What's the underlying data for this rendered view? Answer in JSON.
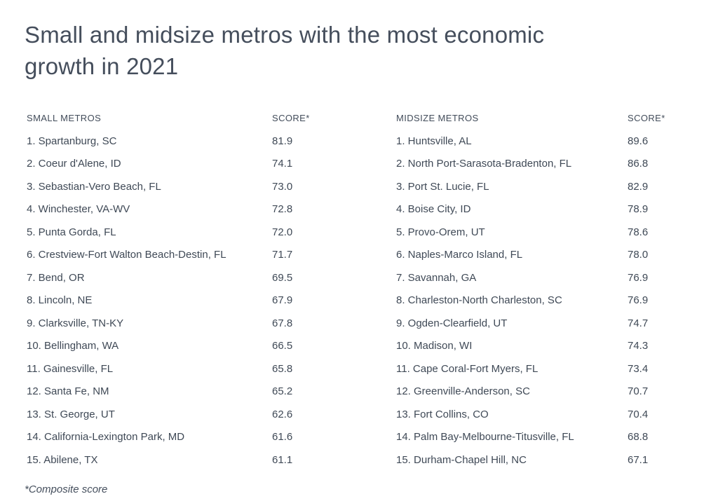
{
  "title": {
    "line1": "Small and midsize metros with the most economic",
    "line2": "growth in 2021",
    "full": "Small and midsize metros with the most economic growth in 2021"
  },
  "footnote": "*Composite score",
  "colors": {
    "background": "#ffffff",
    "title_text": "#454e5c",
    "header_text": "#424c5a",
    "body_text": "#3f4956"
  },
  "chart_data": {
    "type": "table",
    "title": "Small and midsize metros with the most economic growth in 2021",
    "footnote": "*Composite score",
    "tables": [
      {
        "name_header": "SMALL METROS",
        "score_header": "SCORE*",
        "rows": [
          {
            "rank": 1,
            "metro": "Spartanburg, SC",
            "score": "81.9"
          },
          {
            "rank": 2,
            "metro": "Coeur d'Alene, ID",
            "score": "74.1"
          },
          {
            "rank": 3,
            "metro": "Sebastian-Vero Beach, FL",
            "score": "73.0"
          },
          {
            "rank": 4,
            "metro": "Winchester, VA-WV",
            "score": "72.8"
          },
          {
            "rank": 5,
            "metro": "Punta Gorda, FL",
            "score": "72.0"
          },
          {
            "rank": 6,
            "metro": "Crestview-Fort Walton Beach-Destin, FL",
            "score": "71.7"
          },
          {
            "rank": 7,
            "metro": "Bend, OR",
            "score": "69.5"
          },
          {
            "rank": 8,
            "metro": "Lincoln, NE",
            "score": "67.9"
          },
          {
            "rank": 9,
            "metro": "Clarksville, TN-KY",
            "score": "67.8"
          },
          {
            "rank": 10,
            "metro": "Bellingham, WA",
            "score": "66.5"
          },
          {
            "rank": 11,
            "metro": "Gainesville, FL",
            "score": "65.8"
          },
          {
            "rank": 12,
            "metro": "Santa Fe, NM",
            "score": "65.2"
          },
          {
            "rank": 13,
            "metro": "St. George, UT",
            "score": "62.6"
          },
          {
            "rank": 14,
            "metro": "California-Lexington Park, MD",
            "score": "61.6"
          },
          {
            "rank": 15,
            "metro": "Abilene, TX",
            "score": "61.1"
          }
        ]
      },
      {
        "name_header": "MIDSIZE METROS",
        "score_header": "SCORE*",
        "rows": [
          {
            "rank": 1,
            "metro": "Huntsville, AL",
            "score": "89.6"
          },
          {
            "rank": 2,
            "metro": "North Port-Sarasota-Bradenton, FL",
            "score": "86.8"
          },
          {
            "rank": 3,
            "metro": "Port St. Lucie, FL",
            "score": "82.9"
          },
          {
            "rank": 4,
            "metro": "Boise City, ID",
            "score": "78.9"
          },
          {
            "rank": 5,
            "metro": "Provo-Orem, UT",
            "score": "78.6"
          },
          {
            "rank": 6,
            "metro": "Naples-Marco Island, FL",
            "score": "78.0"
          },
          {
            "rank": 7,
            "metro": "Savannah, GA",
            "score": "76.9"
          },
          {
            "rank": 8,
            "metro": "Charleston-North Charleston, SC",
            "score": "76.9"
          },
          {
            "rank": 9,
            "metro": "Ogden-Clearfield, UT",
            "score": "74.7"
          },
          {
            "rank": 10,
            "metro": "Madison, WI",
            "score": "74.3"
          },
          {
            "rank": 11,
            "metro": "Cape Coral-Fort Myers, FL",
            "score": "73.4"
          },
          {
            "rank": 12,
            "metro": "Greenville-Anderson, SC",
            "score": "70.7"
          },
          {
            "rank": 13,
            "metro": "Fort Collins, CO",
            "score": "70.4"
          },
          {
            "rank": 14,
            "metro": "Palm Bay-Melbourne-Titusville, FL",
            "score": "68.8"
          },
          {
            "rank": 15,
            "metro": "Durham-Chapel Hill, NC",
            "score": "67.1"
          }
        ]
      }
    ]
  }
}
